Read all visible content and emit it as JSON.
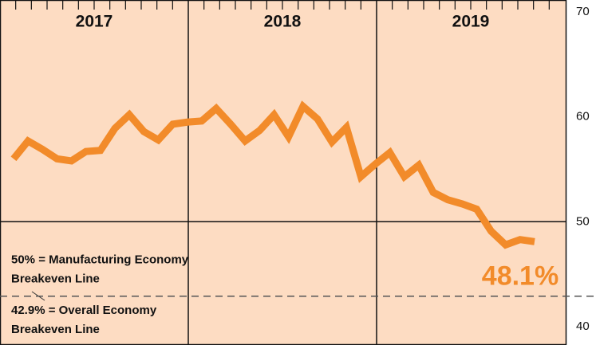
{
  "chart_data": {
    "type": "line",
    "groups": [
      "2017",
      "2018",
      "2019"
    ],
    "series": [
      {
        "color": "#f28b2a",
        "values": [
          56.0,
          57.7,
          56.9,
          56.0,
          55.8,
          56.7,
          56.8,
          58.9,
          60.2,
          58.6,
          57.8,
          59.3,
          59.5,
          59.6,
          60.8,
          59.3,
          57.7,
          58.7,
          60.2,
          58.1,
          61.0,
          59.8,
          57.6,
          59.0,
          54.3,
          55.5,
          56.6,
          54.3,
          55.4,
          52.8,
          52.1,
          51.7,
          51.2,
          49.1,
          47.8,
          48.3,
          48.1
        ],
        "last_label": "48.1%"
      }
    ],
    "ylim": [
      38.25,
      71.14
    ],
    "yticks": [
      40,
      50,
      60,
      70
    ],
    "reference_lines": [
      {
        "value": 50,
        "style": "solid",
        "label_lines": [
          "50% = Manufacturing Economy",
          "Breakeven Line"
        ]
      },
      {
        "value": 42.9,
        "style": "dashed",
        "label_lines": [
          "42.9% = Overall Economy",
          "Breakeven Line"
        ]
      }
    ],
    "background": "#fddcc2"
  }
}
